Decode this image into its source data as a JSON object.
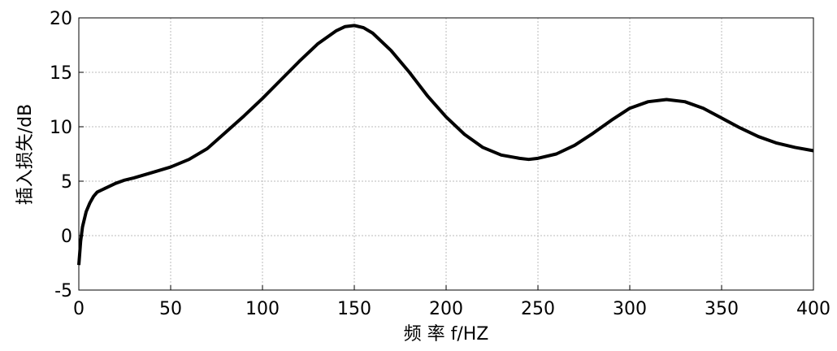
{
  "chart_data": {
    "type": "line",
    "x_label": "频 率 f/HZ",
    "y_label": "插入损失/dB",
    "x": [
      0,
      1,
      2,
      4,
      6,
      8,
      10,
      15,
      20,
      25,
      30,
      40,
      50,
      60,
      70,
      80,
      90,
      100,
      110,
      120,
      130,
      140,
      145,
      150,
      155,
      160,
      170,
      180,
      190,
      200,
      210,
      220,
      230,
      240,
      245,
      250,
      260,
      270,
      280,
      290,
      300,
      310,
      320,
      330,
      340,
      350,
      360,
      370,
      380,
      390,
      400
    ],
    "series": [
      {
        "color": "#000000",
        "values": [
          -2.7,
          -0.5,
          0.8,
          2.2,
          3.0,
          3.6,
          4.0,
          4.4,
          4.8,
          5.1,
          5.3,
          5.8,
          6.3,
          7.0,
          8.0,
          9.5,
          11.0,
          12.6,
          14.3,
          16.0,
          17.6,
          18.8,
          19.2,
          19.3,
          19.1,
          18.6,
          17.0,
          15.0,
          12.8,
          10.9,
          9.3,
          8.1,
          7.4,
          7.1,
          7.0,
          7.1,
          7.5,
          8.3,
          9.4,
          10.6,
          11.7,
          12.3,
          12.5,
          12.3,
          11.7,
          10.8,
          9.9,
          9.1,
          8.5,
          8.1,
          7.8
        ]
      }
    ],
    "xlim": [
      0,
      400
    ],
    "xticks": [
      0,
      50,
      100,
      150,
      200,
      250,
      300,
      350,
      400
    ],
    "ylim": [
      -5,
      20
    ],
    "yticks": [
      -5,
      0,
      5,
      10,
      15,
      20
    ],
    "grid": true
  }
}
